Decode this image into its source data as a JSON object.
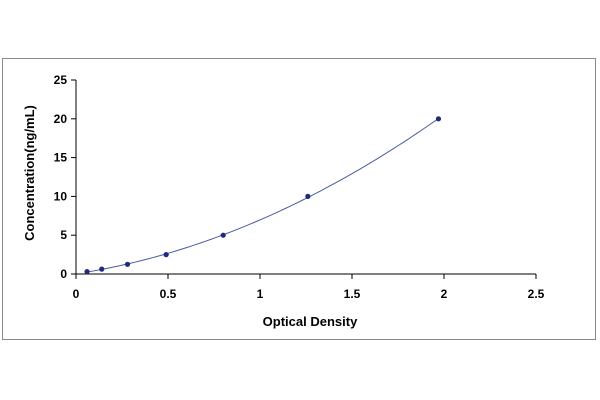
{
  "chart_data": {
    "type": "scatter",
    "xlabel": "Optical Density",
    "ylabel": "Concentration(ng/mL)",
    "xlim": [
      0,
      2.5
    ],
    "ylim": [
      0,
      25
    ],
    "x_ticks": [
      "0",
      "0.5",
      "1",
      "1.5",
      "2",
      "2.5"
    ],
    "y_ticks": [
      "0",
      "5",
      "10",
      "15",
      "20",
      "25"
    ],
    "x_tick_values": [
      0,
      0.5,
      1,
      1.5,
      2,
      2.5
    ],
    "y_tick_values": [
      0,
      5,
      10,
      15,
      20,
      25
    ],
    "grid": false,
    "legend": "none",
    "series": [
      {
        "x": [
          0.06,
          0.14,
          0.28,
          0.49,
          0.8,
          1.26,
          1.97
        ],
        "y": [
          0.31,
          0.63,
          1.25,
          2.5,
          5,
          10,
          20
        ]
      }
    ],
    "fit_curve": {
      "type": "polynomial",
      "x_range": [
        0.06,
        1.97
      ]
    },
    "colors": {
      "points": "#1f2a7a",
      "curve": "#4a5aa0",
      "axes": "#000000",
      "frame": "#8a8a8a"
    }
  }
}
